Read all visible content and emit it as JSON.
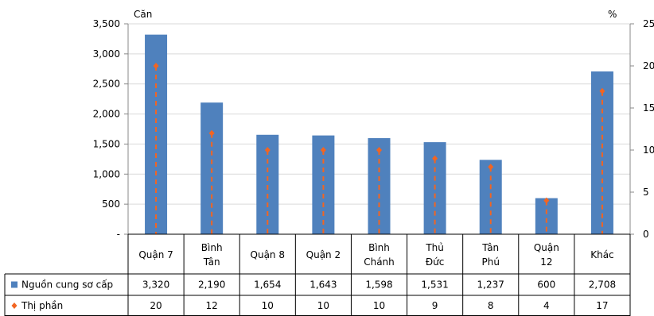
{
  "chart_data": {
    "type": "bar",
    "left_axis_unit": "Căn",
    "right_axis_unit": "%",
    "left_ticks": [
      "-",
      "500",
      "1,000",
      "1,500",
      "2,000",
      "2,500",
      "3,000",
      "3,500"
    ],
    "right_ticks": [
      "0",
      "5",
      "10",
      "15",
      "20",
      "25"
    ],
    "ylim": [
      0,
      3500
    ],
    "y2lim": [
      0,
      25
    ],
    "categories": [
      [
        "Quận 7"
      ],
      [
        "Bình",
        "Tân"
      ],
      [
        "Quận 8"
      ],
      [
        "Quận 2"
      ],
      [
        "Bình",
        "Chánh"
      ],
      [
        "Thủ",
        "Đức"
      ],
      [
        "Tân",
        "Phú"
      ],
      [
        "Quận",
        "12"
      ],
      [
        "Khác"
      ]
    ],
    "series": [
      {
        "name": "Nguồn cung sơ cấp",
        "kind": "bar",
        "color": "#4F81BD",
        "values": [
          3320,
          2190,
          1654,
          1643,
          1598,
          1531,
          1237,
          600,
          2708
        ],
        "labels": [
          "3,320",
          "2,190",
          "1,654",
          "1,643",
          "1,598",
          "1,531",
          "1,237",
          "600",
          "2,708"
        ]
      },
      {
        "name": "Thị phần",
        "kind": "marker-with-dashed-drop-line",
        "axis": "right",
        "color": "#F26522",
        "values": [
          20,
          12,
          10,
          10,
          10,
          9,
          8,
          4,
          17
        ],
        "labels": [
          "20",
          "12",
          "10",
          "10",
          "10",
          "9",
          "8",
          "4",
          "17"
        ]
      }
    ],
    "grid": "horizontal",
    "legend": "table rows below chart"
  }
}
